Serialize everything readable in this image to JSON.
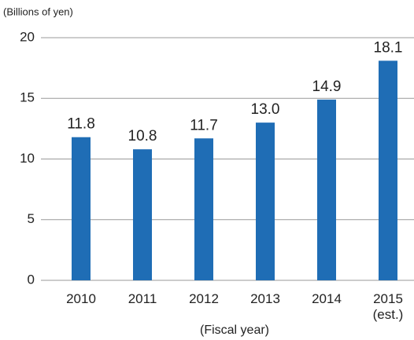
{
  "chart_data": {
    "type": "bar",
    "y_axis_label": "(Billions of yen)",
    "x_axis_label": "(Fiscal year)",
    "categories": [
      "2010",
      "2011",
      "2012",
      "2013",
      "2014",
      "2015\n(est.)"
    ],
    "values": [
      11.8,
      10.8,
      11.7,
      13.0,
      14.9,
      18.1
    ],
    "value_labels": [
      "11.8",
      "10.8",
      "11.7",
      "13.0",
      "14.9",
      "18.1"
    ],
    "color": "#1f6db5",
    "ylim": [
      0,
      20
    ],
    "yticks": [
      0,
      5,
      10,
      15,
      20
    ],
    "grid": true
  }
}
